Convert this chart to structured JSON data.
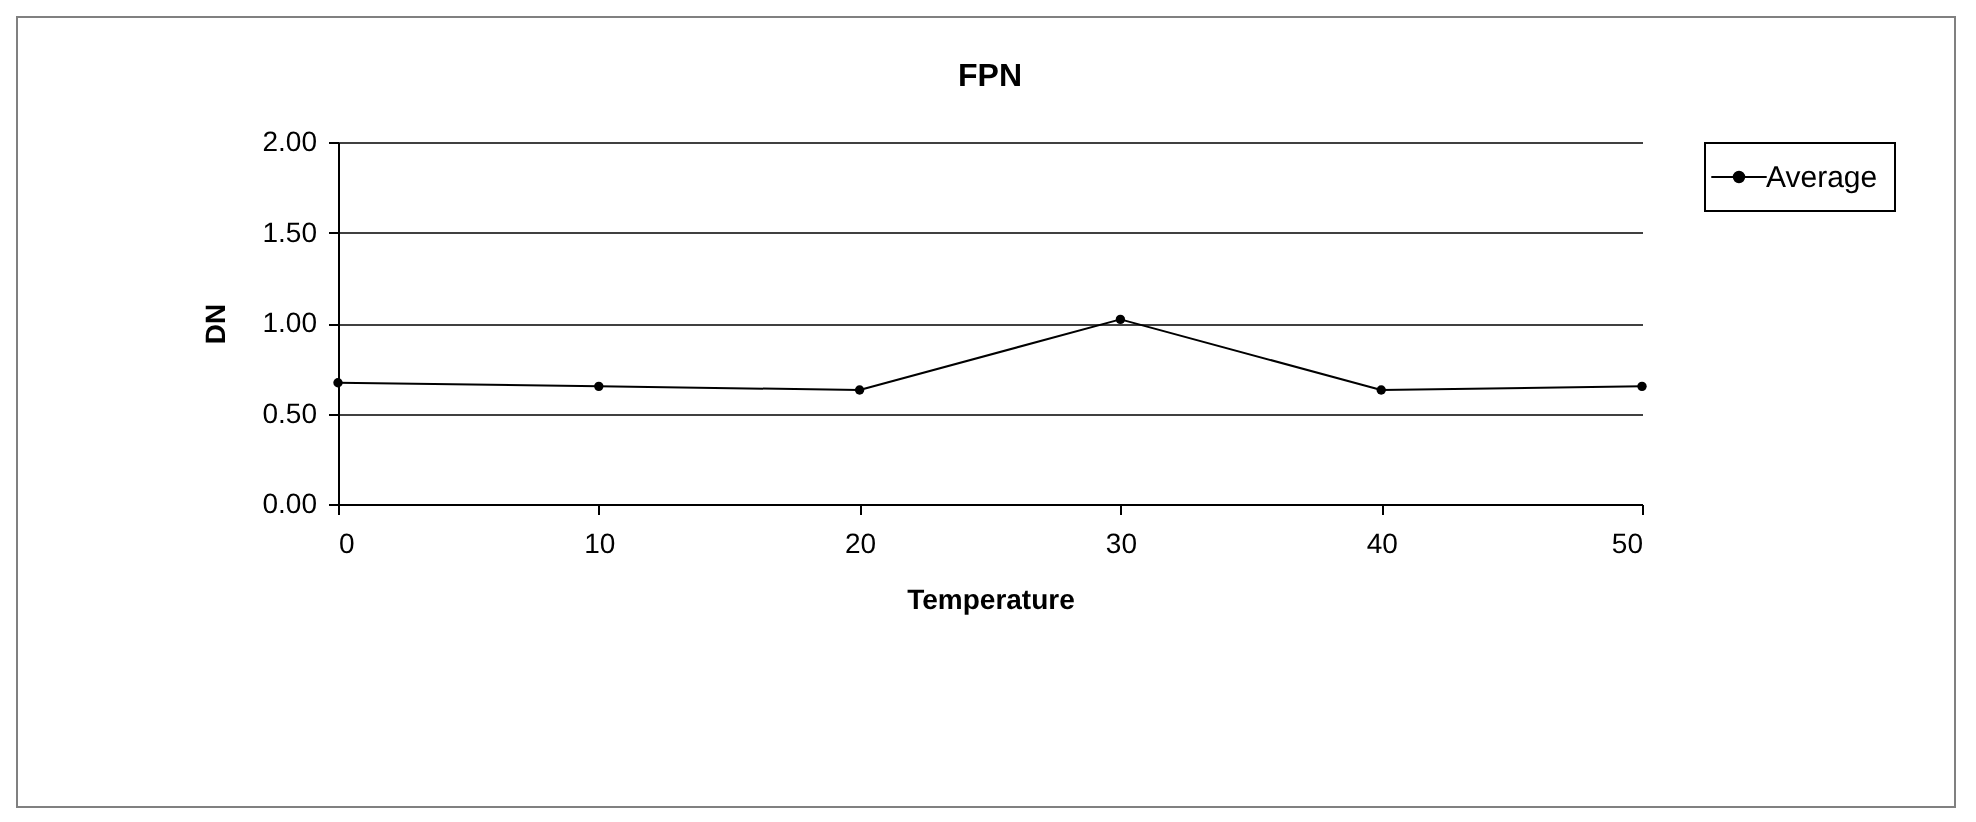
{
  "chart_data": {
    "type": "line",
    "title": "FPN",
    "xlabel": "Temperature",
    "ylabel": "DN",
    "x": [
      0,
      10,
      20,
      30,
      40,
      50
    ],
    "series": [
      {
        "name": "Average",
        "color": "#000000",
        "values": [
          0.67,
          0.65,
          0.63,
          1.02,
          0.63,
          0.65
        ]
      }
    ],
    "xlim": [
      0,
      50
    ],
    "xticks": [
      0,
      10,
      20,
      30,
      40,
      50
    ],
    "ylim": [
      0,
      2
    ],
    "yticks": [
      {
        "value": 0,
        "label": "0.00"
      },
      {
        "value": 0.5,
        "label": "0.50"
      },
      {
        "value": 1,
        "label": "1.00"
      },
      {
        "value": 1.5,
        "label": "1.50"
      },
      {
        "value": 2,
        "label": "2.00"
      }
    ],
    "grid": "y",
    "legend": "right",
    "marker": "circle",
    "line_style": "solid"
  }
}
